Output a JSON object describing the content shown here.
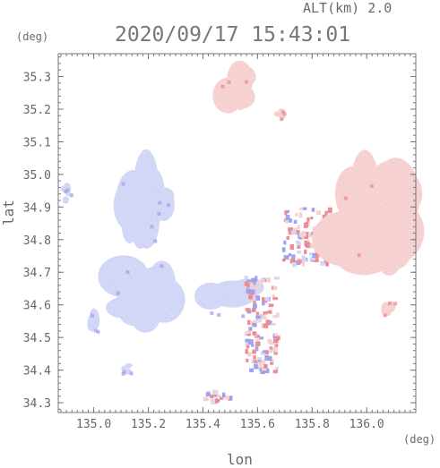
{
  "header": {
    "altitude_label": "ALT(km) 2.0",
    "timestamp": "2020/09/17 15:43:01"
  },
  "axes": {
    "y_unit": "(deg)",
    "x_unit": "(deg)",
    "x_label": "lon",
    "y_label": "lat",
    "x_ticks": [
      "135.0",
      "135.2",
      "135.4",
      "135.6",
      "135.8",
      "136.0"
    ],
    "y_ticks": [
      "35.3",
      "35.2",
      "35.1",
      "35.0",
      "34.9",
      "34.8",
      "34.7",
      "34.6",
      "34.5",
      "34.4",
      "34.3"
    ],
    "x_range": [
      134.87,
      136.18
    ],
    "y_range": [
      34.27,
      35.37
    ]
  },
  "map_data": {
    "type": "doppler_velocity_field",
    "colors": {
      "approaching": "#c8cdf5",
      "approaching_strong": "#7b86e8",
      "receding": "#f5c6c6",
      "receding_strong": "#e8606a",
      "axis": "#777777",
      "background": "#ffffff"
    },
    "echo_regions": [
      {
        "sign": "receding",
        "lon": [
          135.45,
          135.59
        ],
        "lat": [
          35.2,
          35.34
        ]
      },
      {
        "sign": "receding",
        "lon": [
          135.66,
          135.7
        ],
        "lat": [
          35.17,
          35.2
        ]
      },
      {
        "sign": "approaching",
        "lon": [
          134.88,
          134.92
        ],
        "lat": [
          34.91,
          34.97
        ]
      },
      {
        "sign": "approaching",
        "lon": [
          135.1,
          135.25
        ],
        "lat": [
          34.8,
          35.06
        ]
      },
      {
        "sign": "approaching",
        "lon": [
          135.2,
          135.3
        ],
        "lat": [
          34.85,
          34.96
        ]
      },
      {
        "sign": "approaching",
        "lon": [
          135.05,
          135.3
        ],
        "lat": [
          34.55,
          34.73
        ]
      },
      {
        "sign": "approaching",
        "lon": [
          135.39,
          135.6
        ],
        "lat": [
          34.57,
          34.67
        ]
      },
      {
        "sign": "approaching",
        "lon": [
          134.98,
          135.02
        ],
        "lat": [
          34.52,
          34.58
        ]
      },
      {
        "sign": "mixed",
        "lon": [
          135.55,
          135.67
        ],
        "lat": [
          34.4,
          34.69
        ]
      },
      {
        "sign": "mixed",
        "lon": [
          135.69,
          135.88
        ],
        "lat": [
          34.73,
          34.9
        ]
      },
      {
        "sign": "receding",
        "lon": [
          135.88,
          136.18
        ],
        "lat": [
          34.72,
          35.02
        ]
      },
      {
        "sign": "receding",
        "lon": [
          136.06,
          136.1
        ],
        "lat": [
          34.57,
          34.63
        ]
      },
      {
        "sign": "approaching",
        "lon": [
          135.1,
          135.14
        ],
        "lat": [
          34.39,
          34.42
        ]
      },
      {
        "sign": "mixed",
        "lon": [
          135.4,
          135.5
        ],
        "lat": [
          34.31,
          34.34
        ]
      }
    ]
  }
}
